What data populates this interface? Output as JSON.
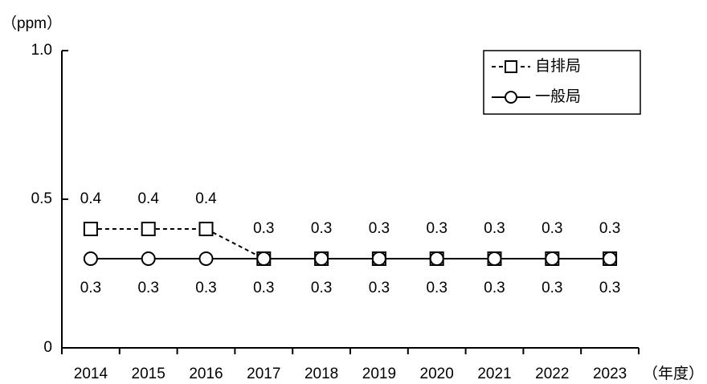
{
  "chart_data": {
    "type": "line",
    "y_label": "（ppm）",
    "x_label": "（年度）",
    "categories": [
      "2014",
      "2015",
      "2016",
      "2017",
      "2018",
      "2019",
      "2020",
      "2021",
      "2022",
      "2023"
    ],
    "series": [
      {
        "name": "自排局",
        "color": "#000000",
        "line_style": "dashed",
        "marker": "square",
        "label_position": "above",
        "values": [
          0.4,
          0.4,
          0.4,
          0.3,
          0.3,
          0.3,
          0.3,
          0.3,
          0.3,
          0.3
        ]
      },
      {
        "name": "一般局",
        "color": "#000000",
        "line_style": "solid",
        "marker": "circle",
        "label_position": "below",
        "values": [
          0.3,
          0.3,
          0.3,
          0.3,
          0.3,
          0.3,
          0.3,
          0.3,
          0.3,
          0.3
        ]
      }
    ],
    "ylim": [
      0,
      1
    ],
    "yticks": [
      0,
      0.5,
      {
        "value": 1,
        "label": "1.0"
      }
    ],
    "legend": "upper right"
  }
}
